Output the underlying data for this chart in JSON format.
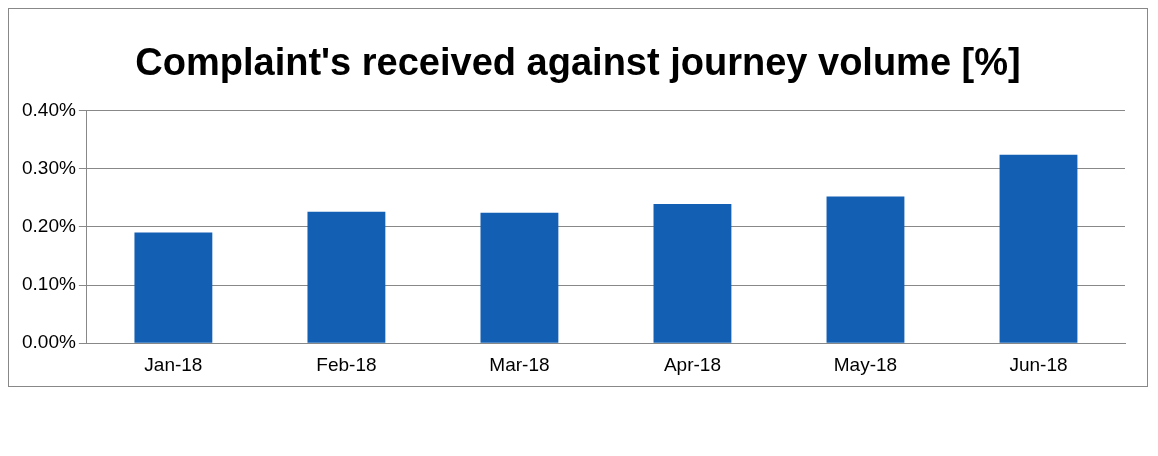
{
  "chart_data": {
    "type": "bar",
    "title": "Complaint's received against journey volume [%]",
    "categories": [
      "Jan-18",
      "Feb-18",
      "Mar-18",
      "Apr-18",
      "May-18",
      "Jun-18"
    ],
    "values": [
      0.19,
      0.226,
      0.224,
      0.239,
      0.252,
      0.324
    ],
    "color": "#125fb3",
    "ylim": [
      0,
      0.4
    ],
    "yticks": [
      {
        "value": 0,
        "label": "0.00%"
      },
      {
        "value": 0.1,
        "label": "0.10%"
      },
      {
        "value": 0.2,
        "label": "0.20%"
      },
      {
        "value": 0.3,
        "label": "0.30%"
      },
      {
        "value": 0.4,
        "label": "0.40%"
      }
    ],
    "grid": "y",
    "legend": false
  }
}
